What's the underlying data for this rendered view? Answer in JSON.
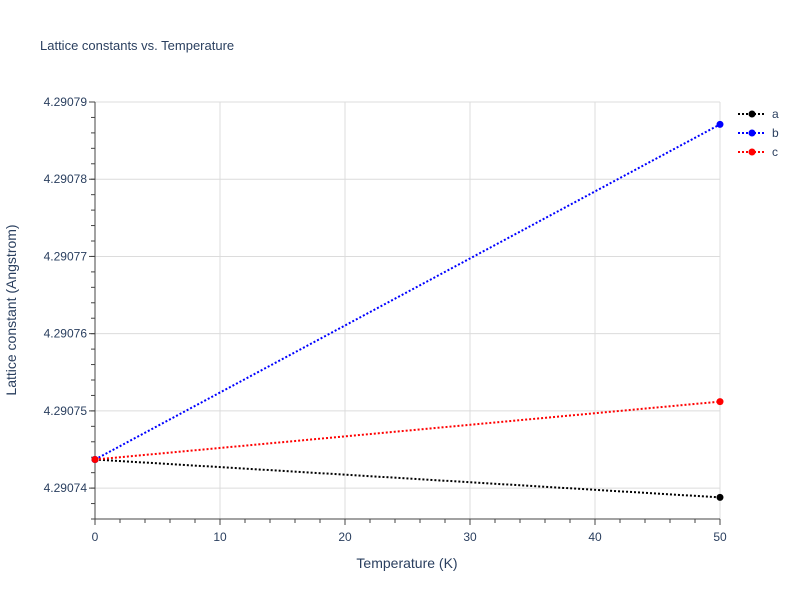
{
  "chart_data": {
    "type": "line",
    "title": "Lattice constants vs. Temperature",
    "xlabel": "Temperature (K)",
    "ylabel": "Lattice constant (Angstrom)",
    "xlim": [
      0,
      50
    ],
    "ylim": [
      4.290736,
      4.29079
    ],
    "xticks": [
      0,
      10,
      20,
      30,
      40,
      50
    ],
    "xtick_labels": [
      "0",
      "10",
      "20",
      "30",
      "40",
      "50"
    ],
    "yticks": [
      4.29074,
      4.29075,
      4.29076,
      4.29077,
      4.29078,
      4.29079
    ],
    "ytick_labels": [
      "4.29074",
      "4.29075",
      "4.29076",
      "4.29077",
      "4.29078",
      "4.29079"
    ],
    "y_minor_step": 2e-06,
    "x_minor_step": 2,
    "grid": true,
    "legend_position": "top-right",
    "series": [
      {
        "name": "a",
        "color": "#000000",
        "line_style": "dotted",
        "x": [
          0,
          50
        ],
        "y": [
          4.2907437,
          4.2907388
        ]
      },
      {
        "name": "b",
        "color": "#0000ff",
        "line_style": "dotted",
        "x": [
          0,
          50
        ],
        "y": [
          4.2907437,
          4.2907871
        ]
      },
      {
        "name": "c",
        "color": "#ff0000",
        "line_style": "dotted",
        "x": [
          0,
          50
        ],
        "y": [
          4.2907437,
          4.2907512
        ]
      }
    ]
  }
}
